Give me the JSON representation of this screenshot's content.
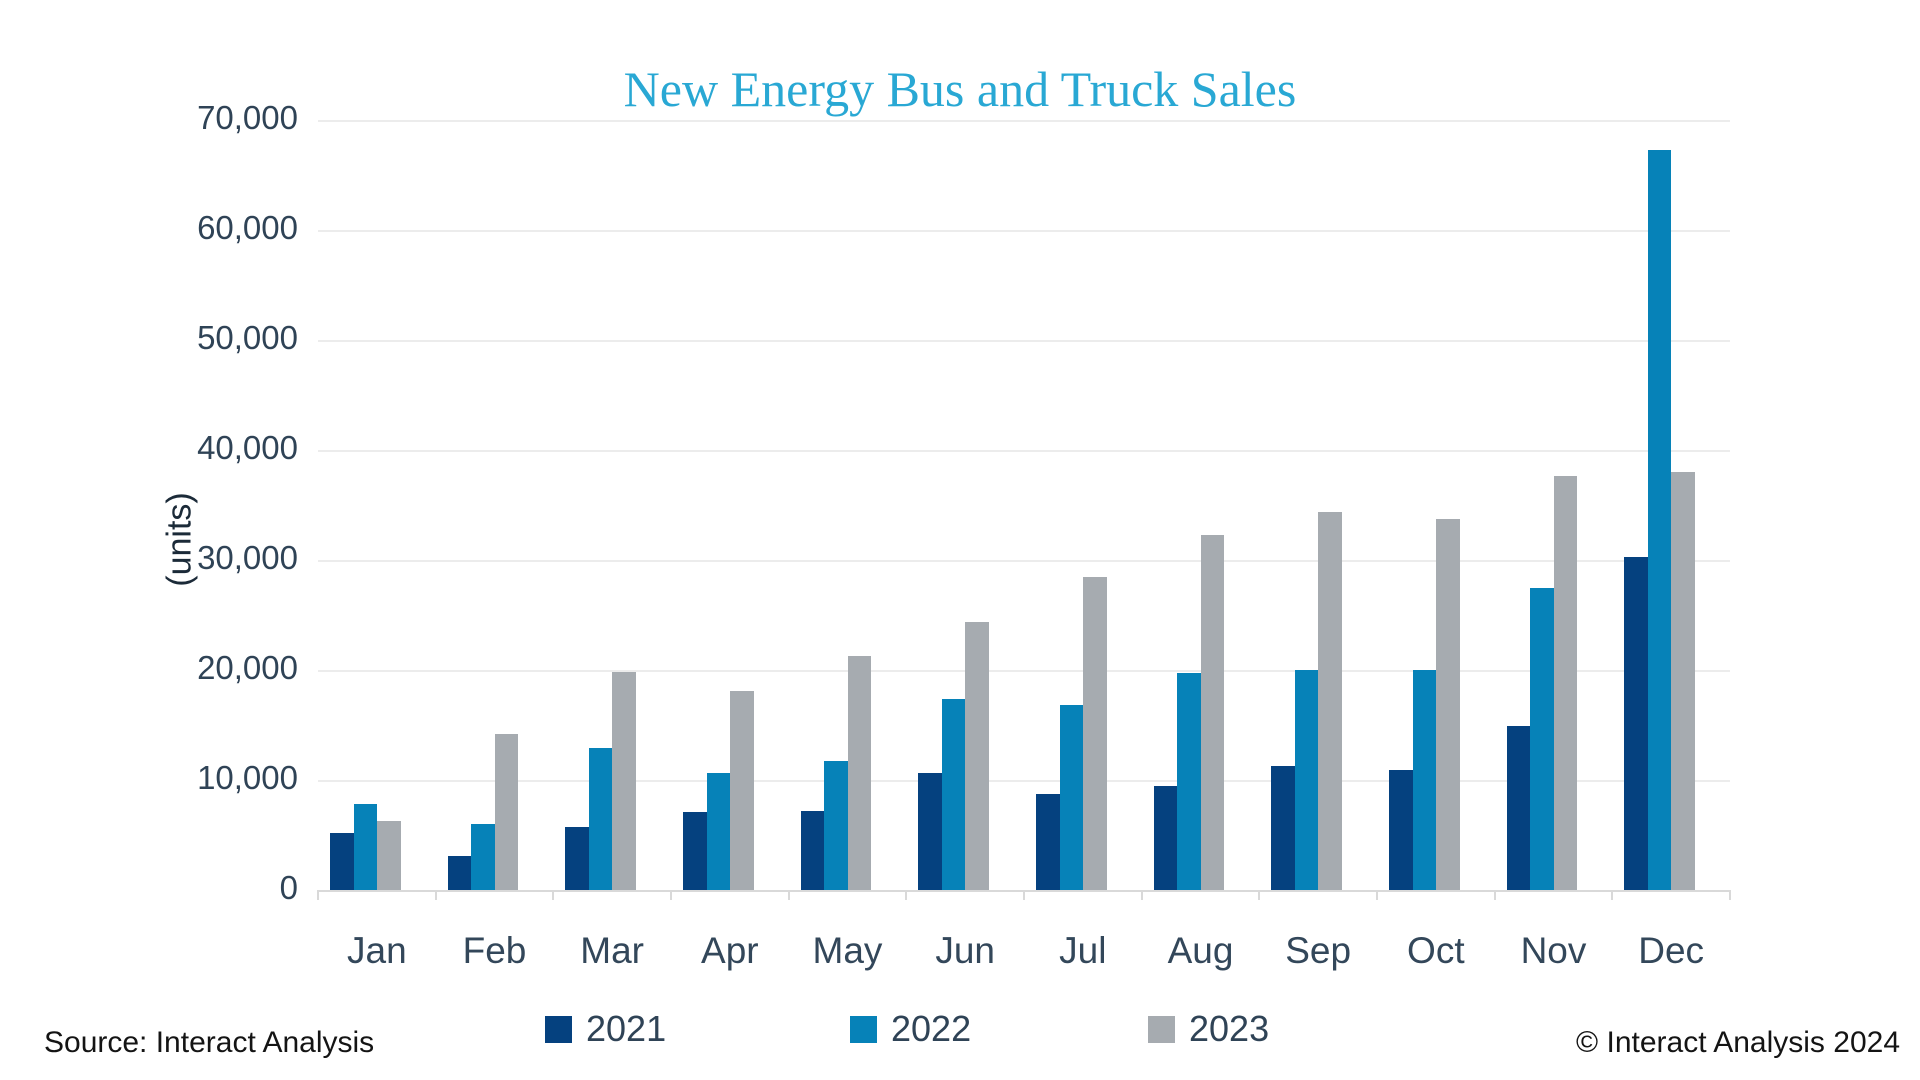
{
  "title": "New Energy Bus and Truck Sales",
  "title_color": "#29a8d4",
  "footer": {
    "source": "Source: Interact Analysis",
    "copyright": "© Interact Analysis 2024"
  },
  "axis_colors": {
    "gridline": "#ececec",
    "axis_line": "#d9d9d9",
    "tick": "#d9d9d9",
    "y_label_color": "#2f4356",
    "x_label_color": "#33475a"
  },
  "chart_data": {
    "type": "bar",
    "title": "New Energy Bus and Truck Sales",
    "xlabel": "",
    "ylabel": "(units)",
    "ylim": [
      0,
      70000
    ],
    "ytick_step": 10000,
    "grid": true,
    "legend_position": "bottom",
    "categories": [
      "Jan",
      "Feb",
      "Mar",
      "Apr",
      "May",
      "Jun",
      "Jul",
      "Aug",
      "Sep",
      "Oct",
      "Nov",
      "Dec"
    ],
    "series": [
      {
        "name": "2021",
        "color": "#05417f",
        "values": [
          5200,
          3100,
          5700,
          7100,
          7200,
          10600,
          8700,
          9500,
          11300,
          10900,
          14900,
          30300
        ]
      },
      {
        "name": "2022",
        "color": "#0682b8",
        "values": [
          7800,
          6000,
          12900,
          10600,
          11700,
          17400,
          16800,
          19700,
          20000,
          20000,
          27500,
          67300
        ]
      },
      {
        "name": "2023",
        "color": "#a6abb0",
        "values": [
          6300,
          14200,
          19800,
          18100,
          21300,
          24400,
          28500,
          32300,
          34400,
          33700,
          37600,
          38000
        ]
      }
    ]
  }
}
